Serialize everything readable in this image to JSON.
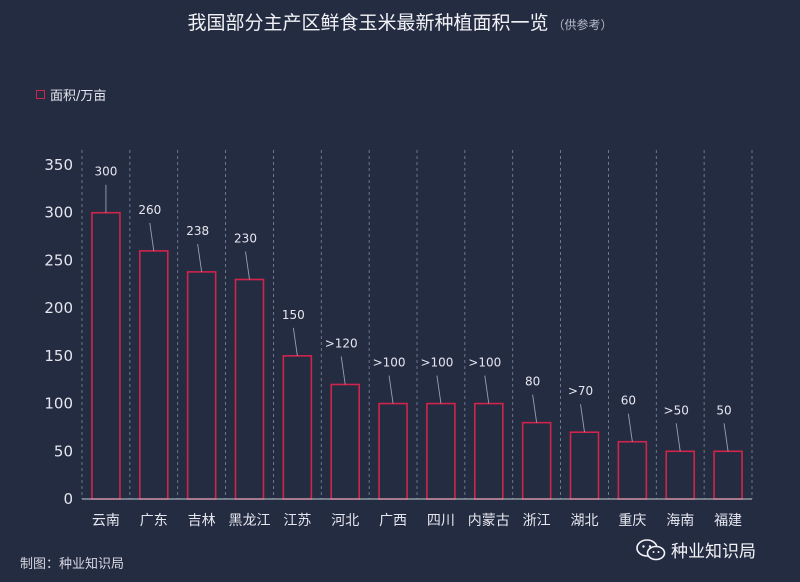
{
  "title": "我国部分主产区鲜食玉米最新种植面积一览",
  "title_note": "（供参考）",
  "credit": "制图：种业知识局",
  "watermark": "种业知识局",
  "colors": {
    "background": "#242c42",
    "bar": "#d0244a",
    "grid": "#7f879e"
  },
  "chart_data": {
    "type": "bar",
    "categories": [
      "云南",
      "广东",
      "吉林",
      "黑龙江",
      "江苏",
      "河北",
      "广西",
      "四川",
      "内蒙古",
      "浙江",
      "湖北",
      "重庆",
      "海南",
      "福建"
    ],
    "series": [
      {
        "name": "面积/万亩",
        "values": [
          300,
          260,
          238,
          230,
          150,
          120,
          100,
          100,
          100,
          80,
          70,
          60,
          50,
          50
        ],
        "labels": [
          "300",
          "260",
          "238",
          "230",
          "150",
          ">120",
          ">100",
          ">100",
          ">100",
          "80",
          ">70",
          "60",
          ">50",
          "50"
        ]
      }
    ],
    "yticks": [
      0,
      50,
      100,
      150,
      200,
      250,
      300,
      350
    ],
    "ylim": [
      0,
      350
    ],
    "grid": "vertical dashed",
    "legend": "top-left"
  }
}
